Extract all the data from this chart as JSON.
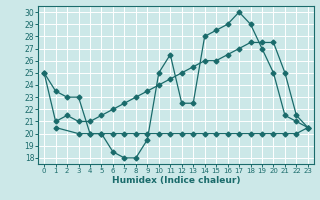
{
  "title": "",
  "xlabel": "Humidex (Indice chaleur)",
  "bg_color": "#cce8e8",
  "grid_color": "#ffffff",
  "line_color": "#1a6b6b",
  "xlim": [
    -0.5,
    23.5
  ],
  "ylim": [
    17.5,
    30.5
  ],
  "yticks": [
    18,
    19,
    20,
    21,
    22,
    23,
    24,
    25,
    26,
    27,
    28,
    29,
    30
  ],
  "xticks": [
    0,
    1,
    2,
    3,
    4,
    5,
    6,
    7,
    8,
    9,
    10,
    11,
    12,
    13,
    14,
    15,
    16,
    17,
    18,
    19,
    20,
    21,
    22,
    23
  ],
  "line1_x": [
    0,
    1,
    2,
    3,
    4,
    5,
    6,
    7,
    8,
    9,
    10,
    11,
    12,
    13,
    14,
    15,
    16,
    17,
    18,
    19,
    20,
    21,
    22,
    23
  ],
  "line1_y": [
    25,
    23.5,
    23,
    23,
    20,
    20,
    18.5,
    18,
    18,
    19.5,
    25,
    26.5,
    22.5,
    22.5,
    28,
    28.5,
    29,
    30,
    29,
    27,
    25,
    21.5,
    21,
    20.5
  ],
  "line2_x": [
    1,
    3,
    4,
    5,
    6,
    7,
    8,
    9,
    10,
    11,
    12,
    13,
    14,
    15,
    16,
    17,
    18,
    19,
    20,
    21,
    22,
    23
  ],
  "line2_y": [
    20.5,
    20,
    20,
    20,
    20,
    20,
    20,
    20,
    20,
    20,
    20,
    20,
    20,
    20,
    20,
    20,
    20,
    20,
    20,
    20,
    20,
    20.5
  ],
  "line3_x": [
    0,
    1,
    2,
    3,
    4,
    5,
    6,
    7,
    8,
    9,
    10,
    11,
    12,
    13,
    14,
    15,
    16,
    17,
    18,
    19,
    20,
    21,
    22,
    23
  ],
  "line3_y": [
    25,
    21,
    21.5,
    21,
    21,
    21.5,
    22,
    22.5,
    23,
    23.5,
    24,
    24.5,
    25,
    25.5,
    26,
    26,
    26.5,
    27,
    27.5,
    27.5,
    27.5,
    25,
    21.5,
    20.5
  ]
}
